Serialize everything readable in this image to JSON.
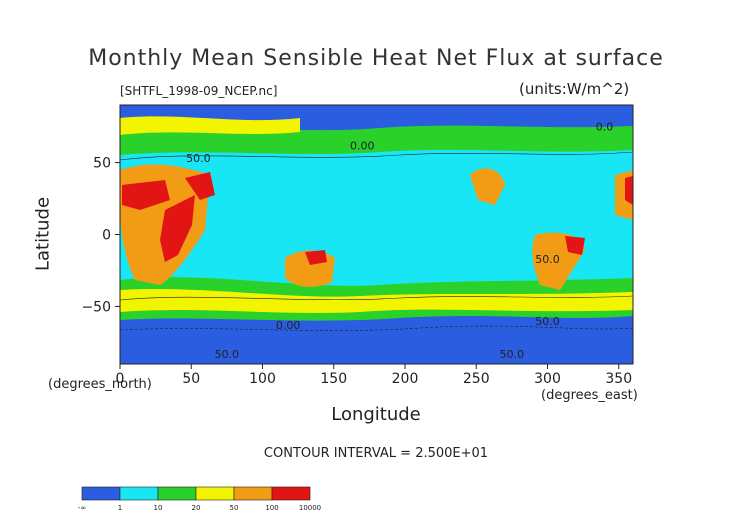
{
  "colors": {
    "blue": "#2a5de0",
    "cyan": "#19e6f5",
    "green": "#2bd12b",
    "yellow": "#f3f500",
    "orange": "#f29c16",
    "red": "#e31414"
  },
  "chart_data": {
    "type": "heatmap",
    "title": "Monthly Mean Sensible Heat Net Flux at surface",
    "file_label": "[SHTFL_1998-09_NCEP.nc]",
    "units_label": "(units:W/m^2)",
    "xlabel": "Longitude",
    "ylabel": "Latitude",
    "x_units": "(degrees_east)",
    "y_units": "(degrees_north)",
    "contour_interval_text": "CONTOUR INTERVAL = 2.500E+01",
    "xlim": [
      0,
      360
    ],
    "ylim": [
      -90,
      90
    ],
    "x_ticks": [
      0,
      50,
      100,
      150,
      200,
      250,
      300,
      350
    ],
    "x_tick_labels": [
      "0",
      "50",
      "100",
      "150",
      "200",
      "250",
      "300",
      "350"
    ],
    "y_ticks": [
      -50,
      0,
      50
    ],
    "y_tick_labels": [
      "−50",
      "0",
      "50"
    ],
    "contour_labels": [
      {
        "text": "50.0",
        "x": 55,
        "y": 53
      },
      {
        "text": "0.0",
        "x": 340,
        "y": 75
      },
      {
        "text": "0.00",
        "x": 170,
        "y": 62
      },
      {
        "text": "0.00",
        "x": 118,
        "y": -63
      },
      {
        "text": "50.0",
        "x": 75,
        "y": -83
      },
      {
        "text": "50.0",
        "x": 300,
        "y": -17
      },
      {
        "text": "50.0",
        "x": 300,
        "y": -60
      },
      {
        "text": "50.0",
        "x": 275,
        "y": -83
      }
    ],
    "legend": {
      "bin_edges_labels": [
        "-∞",
        "1",
        "10",
        "20",
        "50",
        "100",
        "10000"
      ],
      "colors": [
        "#2a5de0",
        "#19e6f5",
        "#2bd12b",
        "#f3f500",
        "#f29c16",
        "#e31414"
      ]
    }
  }
}
